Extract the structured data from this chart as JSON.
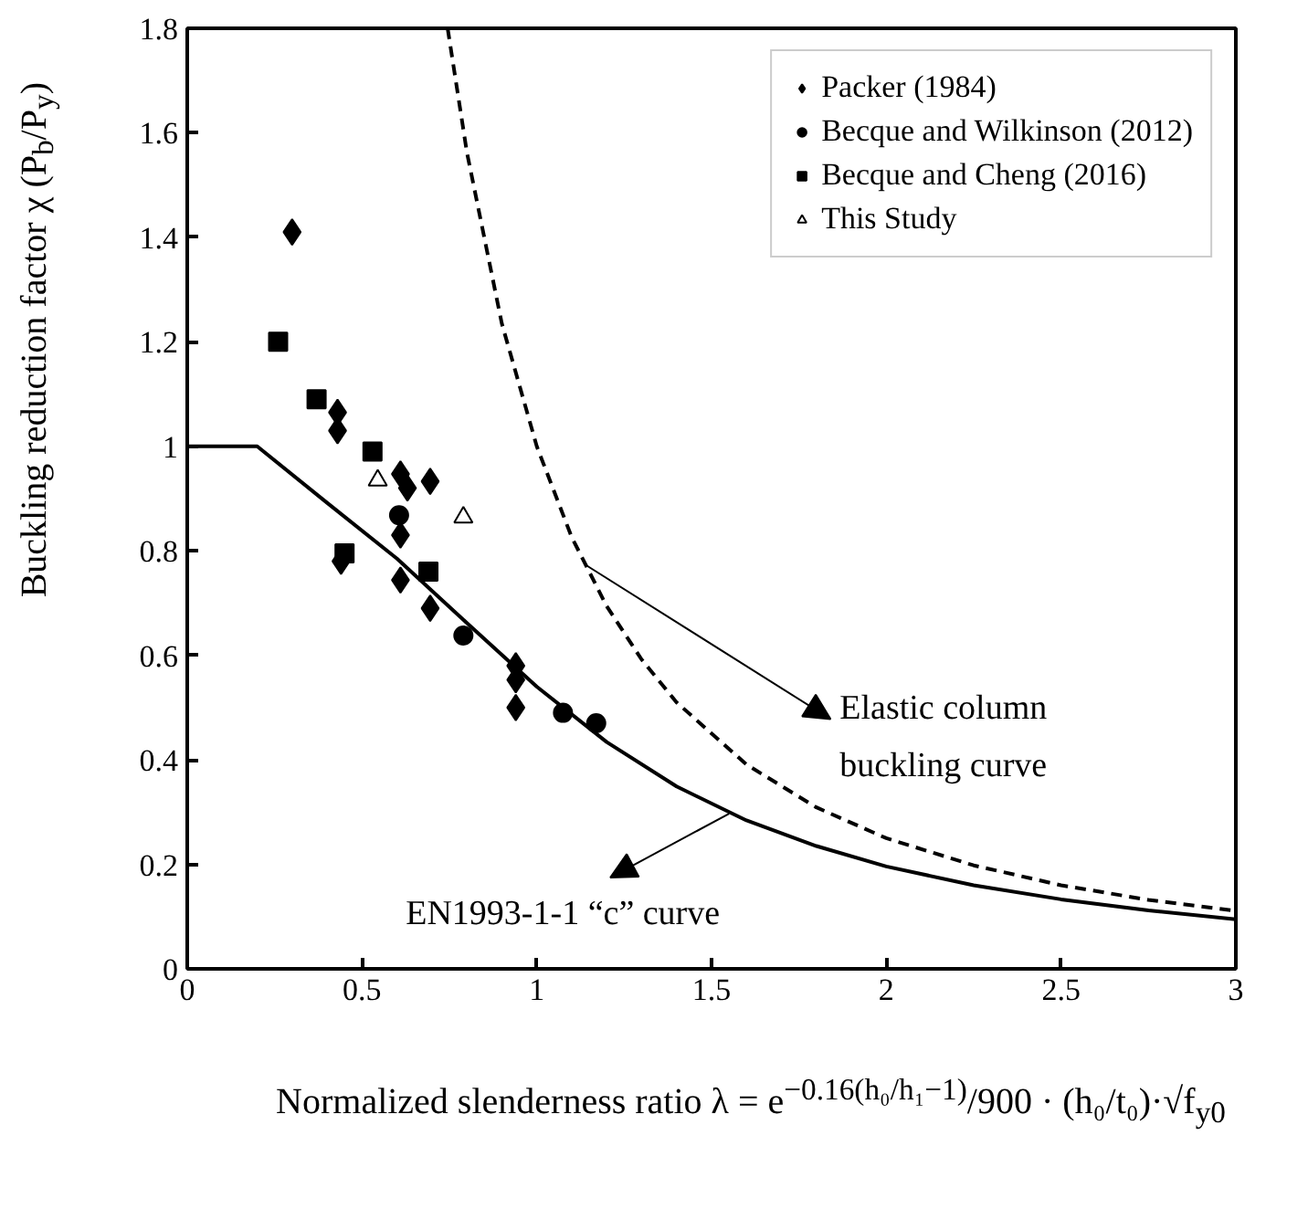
{
  "chart_data": {
    "type": "scatter",
    "xlabel": "Normalized slenderness ratio λ = e$^{−0.16(h₀/h₁−1)}$/900 · (h₀/t₀)·√f$_{y0}$",
    "ylabel": "Buckling reduction factor χ (P$_{b}$/P$_{y}$)",
    "xlim": [
      0,
      3
    ],
    "ylim": [
      0,
      1.8
    ],
    "xticks": [
      0,
      0.5,
      1,
      1.5,
      2,
      2.5,
      3
    ],
    "yticks": [
      0,
      0.2,
      0.4,
      0.6,
      0.8,
      1,
      1.2,
      1.4,
      1.6,
      1.8
    ],
    "grid": false,
    "legend": "top right",
    "series": [
      {
        "name": "Packer (1984)",
        "color": "#000000",
        "marker": "diamond",
        "x": [
          0.3,
          0.43,
          0.43,
          0.61,
          0.63,
          0.695,
          0.61,
          0.44,
          0.61,
          0.695,
          0.94,
          0.94,
          0.94
        ],
        "values": [
          1.41,
          1.065,
          1.03,
          0.947,
          0.92,
          0.933,
          0.83,
          0.78,
          0.744,
          0.69,
          0.58,
          0.553,
          0.5
        ]
      },
      {
        "name": "Becque and Wilkinson (2012)",
        "color": "#000000",
        "marker": "circle",
        "x": [
          0.606,
          0.79,
          1.075,
          1.17
        ],
        "values": [
          0.868,
          0.638,
          0.49,
          0.47
        ]
      },
      {
        "name": "Becque and Cheng (2016)",
        "color": "#000000",
        "marker": "square",
        "x": [
          0.26,
          0.37,
          0.53,
          0.45,
          0.69
        ],
        "values": [
          1.2,
          1.09,
          0.99,
          0.795,
          0.76
        ]
      },
      {
        "name": "This Study",
        "color": "#000000",
        "marker": "triangle",
        "x": [
          0.545,
          0.79
        ],
        "values": [
          0.935,
          0.864
        ]
      },
      {
        "type": "line",
        "color": "#000000",
        "marker": "none",
        "line_style": "solid",
        "x": [
          0,
          0.2,
          0.4,
          0.6,
          0.8,
          1.0,
          1.2,
          1.4,
          1.6,
          1.8,
          2.0,
          2.25,
          2.5,
          2.75,
          3.0
        ],
        "values": [
          1,
          1,
          0.892,
          0.785,
          0.662,
          0.54,
          0.434,
          0.349,
          0.284,
          0.235,
          0.196,
          0.16,
          0.133,
          0.112,
          0.095
        ]
      },
      {
        "type": "line",
        "color": "#000000",
        "marker": "none",
        "line_style": "dashed",
        "x": [
          0.745,
          0.8,
          0.9,
          1.0,
          1.1,
          1.2,
          1.3,
          1.4,
          1.6,
          1.8,
          2.0,
          2.25,
          2.5,
          2.75,
          3.0
        ],
        "values": [
          1.8,
          1.563,
          1.235,
          1.0,
          0.826,
          0.694,
          0.592,
          0.51,
          0.391,
          0.309,
          0.25,
          0.198,
          0.16,
          0.132,
          0.111
        ]
      }
    ],
    "annotations": [
      {
        "text": "Elastic column\nbuckling curve",
        "x": 1.135,
        "y": 0.775
      },
      {
        "text": "EN1993-1-1 “c” curve",
        "x": 1.55,
        "y": 0.297
      }
    ]
  }
}
